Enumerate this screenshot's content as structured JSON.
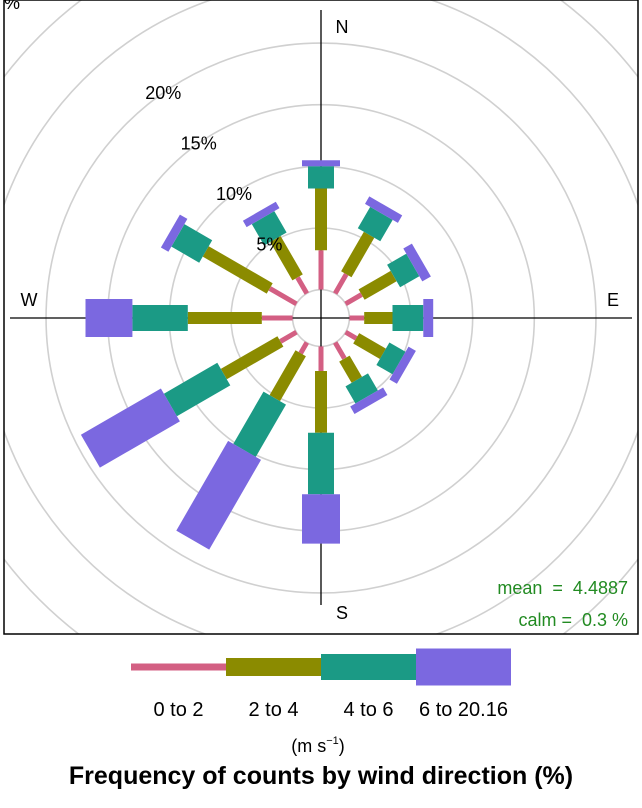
{
  "chart_data": {
    "type": "windrose",
    "title": "Frequency of counts by wind direction (%)",
    "directions": [
      0,
      30,
      60,
      90,
      120,
      150,
      180,
      210,
      240,
      270,
      300,
      330
    ],
    "compass_labels": {
      "north": "N",
      "east": "E",
      "south": "S",
      "west": "W"
    },
    "radial_axis": {
      "unit_label": "%",
      "offset": 2.3,
      "rings": [
        {
          "value": 5,
          "label": "5%"
        },
        {
          "value": 10,
          "label": "10%"
        },
        {
          "value": 15,
          "label": "15%"
        },
        {
          "value": 20,
          "label": "20%"
        },
        {
          "value": 25,
          "label": ""
        },
        {
          "value": 30,
          "label": ""
        }
      ]
    },
    "series": [
      {
        "name": "0 to 2",
        "color": "#d35f83",
        "values": [
          3.2,
          1.8,
          1.5,
          1.2,
          1.0,
          1.5,
          2.0,
          1.0,
          1.5,
          2.5,
          2.5,
          1.5
        ]
      },
      {
        "name": "2 to 4",
        "color": "#8b8b00",
        "values": [
          5.0,
          3.7,
          3.0,
          2.3,
          2.5,
          2.0,
          5.0,
          4.2,
          5.3,
          6.0,
          6.0,
          3.6
        ]
      },
      {
        "name": "4 to 6",
        "color": "#1b9a85",
        "values": [
          1.8,
          2.0,
          1.8,
          2.5,
          1.5,
          1.6,
          5.0,
          4.9,
          5.0,
          4.5,
          2.6,
          2.0
        ]
      },
      {
        "name": "6 to 20.16",
        "color": "#7b68e0",
        "values": [
          0.5,
          0.7,
          0.8,
          0.8,
          0.7,
          0.7,
          4.0,
          8.4,
          7.5,
          3.8,
          0.7,
          0.6
        ]
      }
    ],
    "legend": {
      "placement": "bottom",
      "unit": "(m s",
      "unit_sup": "−1",
      "unit_close": ")"
    },
    "stats": {
      "mean_text": "mean  =  4.4887",
      "calm_text": "calm =  0.3 %",
      "color": "#228b22"
    },
    "grid": true
  }
}
